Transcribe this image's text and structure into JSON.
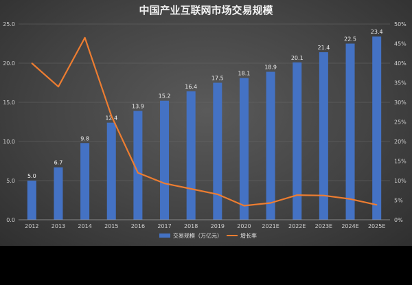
{
  "chart_data": {
    "type": "bar+line",
    "title": "中国产业互联网市场交易规模",
    "categories": [
      "2012",
      "2013",
      "2014",
      "2015",
      "2016",
      "2017",
      "2018",
      "2019",
      "2020",
      "2021E",
      "2022E",
      "2023E",
      "2024E",
      "2025E"
    ],
    "series": [
      {
        "name": "交易规模（万亿元）",
        "type": "bar",
        "axis": "left",
        "values": [
          5.0,
          6.7,
          9.8,
          12.4,
          13.9,
          15.2,
          16.4,
          17.5,
          18.1,
          18.9,
          20.1,
          21.4,
          22.5,
          23.4
        ],
        "labels": [
          "5.0",
          "6.7",
          "9.8",
          "12.4",
          "13.9",
          "15.2",
          "16.4",
          "17.5",
          "18.1",
          "18.9",
          "20.1",
          "21.4",
          "22.5",
          "23.4"
        ],
        "color": "#4472c4"
      },
      {
        "name": "增长率",
        "type": "line",
        "axis": "right",
        "values": [
          40,
          34,
          46.5,
          26.5,
          12,
          9.3,
          7.9,
          6.5,
          3.6,
          4.3,
          6.3,
          6.2,
          5.3,
          3.8
        ],
        "color": "#ed7d31"
      }
    ],
    "y_left": {
      "min": 0,
      "max": 25,
      "ticks": [
        "0.0",
        "5.0",
        "10.0",
        "15.0",
        "20.0",
        "25.0"
      ]
    },
    "y_right": {
      "min": 0,
      "max": 50,
      "ticks": [
        "0%",
        "5%",
        "10%",
        "15%",
        "20%",
        "25%",
        "30%",
        "35%",
        "40%",
        "45%",
        "50%"
      ]
    },
    "legend": {
      "position": "bottom"
    },
    "grid": true
  }
}
